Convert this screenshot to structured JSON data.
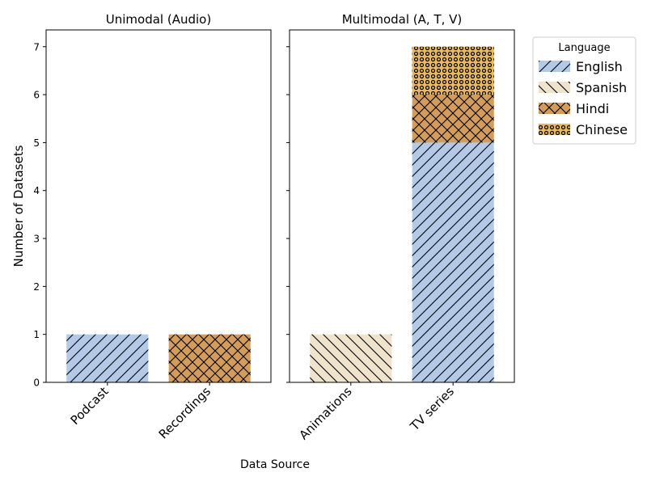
{
  "figure": {
    "ylabel": "Number of Datasets",
    "xlabel": "Data Source"
  },
  "legend": {
    "title": "Language",
    "placement": "upper right outside",
    "entries": [
      {
        "name": "English",
        "color": "#b3c9e6",
        "hatch": "/"
      },
      {
        "name": "Spanish",
        "color": "#efe4cb",
        "hatch": "\\"
      },
      {
        "name": "Hindi",
        "color": "#d39c5a",
        "hatch": "x"
      },
      {
        "name": "Chinese",
        "color": "#e8b95e",
        "hatch": "o"
      }
    ]
  },
  "chart_data": [
    {
      "type": "bar",
      "stacked": true,
      "title": "Unimodal (Audio)",
      "categories": [
        "Podcast",
        "Recordings"
      ],
      "series": [
        {
          "name": "English",
          "values": [
            1,
            0
          ]
        },
        {
          "name": "Spanish",
          "values": [
            0,
            0
          ]
        },
        {
          "name": "Hindi",
          "values": [
            0,
            1
          ]
        },
        {
          "name": "Chinese",
          "values": [
            0,
            0
          ]
        }
      ],
      "ylim": [
        0,
        7.35
      ],
      "yticks": [
        0,
        1,
        2,
        3,
        4,
        5,
        6,
        7
      ],
      "grid": false
    },
    {
      "type": "bar",
      "stacked": true,
      "title": "Multimodal (A, T, V)",
      "categories": [
        "Animations",
        "TV series"
      ],
      "series": [
        {
          "name": "English",
          "values": [
            0,
            5
          ]
        },
        {
          "name": "Spanish",
          "values": [
            1,
            0
          ]
        },
        {
          "name": "Hindi",
          "values": [
            0,
            1
          ]
        },
        {
          "name": "Chinese",
          "values": [
            0,
            1
          ]
        }
      ],
      "ylim": [
        0,
        7.35
      ],
      "yticks": [
        0,
        1,
        2,
        3,
        4,
        5,
        6,
        7
      ],
      "grid": false
    }
  ]
}
